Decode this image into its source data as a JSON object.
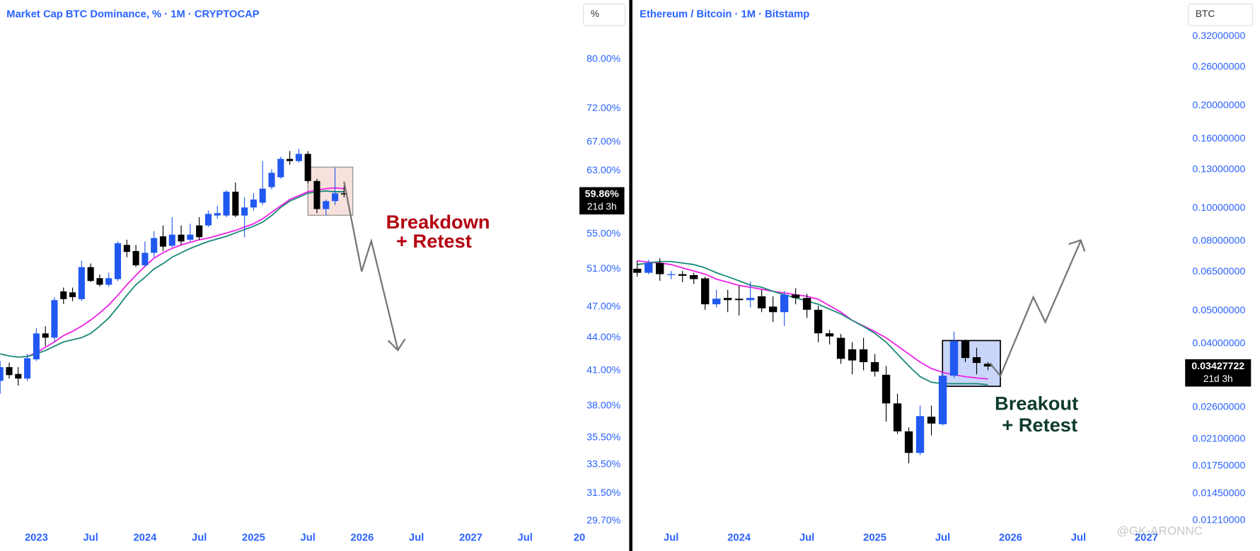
{
  "chart_data": [
    {
      "type": "candlestick",
      "title": "Market Cap BTC Dominance, % · 1M · CRYPTOCAP",
      "y_unit": "%",
      "log_scale": true,
      "grid": false,
      "up_color": "#2158f0",
      "down_color": "#000000",
      "x": [
        "2022-09",
        "2022-10",
        "2022-11",
        "2022-12",
        "2023-01",
        "2023-02",
        "2023-03",
        "2023-04",
        "2023-05",
        "2023-06",
        "2023-07",
        "2023-08",
        "2023-09",
        "2023-10",
        "2023-11",
        "2023-12",
        "2024-01",
        "2024-02",
        "2024-03",
        "2024-04",
        "2024-05",
        "2024-06",
        "2024-07",
        "2024-08",
        "2024-09",
        "2024-10",
        "2024-11",
        "2024-12",
        "2025-01",
        "2025-02",
        "2025-03",
        "2025-04",
        "2025-05",
        "2025-06",
        "2025-07",
        "2025-08",
        "2025-09",
        "2025-10",
        "2025-11"
      ],
      "open": [
        40.1,
        41.3,
        40.7,
        40.3,
        42.0,
        44.4,
        44.0,
        48.6,
        48.5,
        47.8,
        51.2,
        50.0,
        49.3,
        49.9,
        53.7,
        53.0,
        51.4,
        52.8,
        54.7,
        53.6,
        54.9,
        54.3,
        56.0,
        56.0,
        57.2,
        57.2,
        60.2,
        57.2,
        58.2,
        58.8,
        60.8,
        62.1,
        64.6,
        64.3,
        65.3,
        61.6,
        58.0,
        59.0,
        60.0
      ],
      "high": [
        41.85,
        41.7,
        41.3,
        42.5,
        44.9,
        45.1,
        48.0,
        49.0,
        49.0,
        51.9,
        51.6,
        50.4,
        50.6,
        54.1,
        54.3,
        53.7,
        54.1,
        55.3,
        56.0,
        57.0,
        56.0,
        56.2,
        57.0,
        57.8,
        58.4,
        60.4,
        61.4,
        59.5,
        60.0,
        64.3,
        63.2,
        64.9,
        65.7,
        66.0,
        65.7,
        61.9,
        59.2,
        63.4,
        61.0
      ],
      "low": [
        39.0,
        40.3,
        39.7,
        40.1,
        41.85,
        43.2,
        43.6,
        47.3,
        47.6,
        47.6,
        49.6,
        49.1,
        49.1,
        49.7,
        52.3,
        51.2,
        51.2,
        52.3,
        53.0,
        53.4,
        53.7,
        54.1,
        54.3,
        55.8,
        56.8,
        57.0,
        57.0,
        54.6,
        57.8,
        58.5,
        60.5,
        61.9,
        63.8,
        64.1,
        61.3,
        57.5,
        57.2,
        58.5,
        59.5
      ],
      "close": [
        41.3,
        40.6,
        40.3,
        42.1,
        44.4,
        44.0,
        47.7,
        47.8,
        48.0,
        51.2,
        49.7,
        49.3,
        50.0,
        53.9,
        52.9,
        51.4,
        52.8,
        54.5,
        53.5,
        54.9,
        54.1,
        54.9,
        54.6,
        57.4,
        57.5,
        60.2,
        57.2,
        58.2,
        59.2,
        60.6,
        62.7,
        64.6,
        64.3,
        65.3,
        61.6,
        58.0,
        59.0,
        60.0,
        59.86
      ],
      "moving_averages": [
        {
          "color": "#ee22e6",
          "values": [
            null,
            null,
            null,
            42.25,
            42.6,
            43.1,
            43.6,
            44.2,
            44.6,
            45.1,
            45.7,
            46.4,
            47.2,
            48.2,
            49.3,
            50.3,
            51.3,
            52.2,
            52.8,
            53.3,
            53.7,
            54.0,
            54.3,
            54.5,
            54.8,
            55.1,
            55.4,
            55.8,
            56.2,
            56.8,
            57.6,
            58.4,
            59.2,
            59.7,
            60.2,
            60.4,
            60.6,
            60.7,
            60.6
          ]
        },
        {
          "color": "#1a8a78",
          "values": [
            42.5,
            42.3,
            42.2,
            42.25,
            42.5,
            42.8,
            43.2,
            43.6,
            43.8,
            44.0,
            44.4,
            45.1,
            45.9,
            47.0,
            48.2,
            49.3,
            50.1,
            51.0,
            51.6,
            52.3,
            52.8,
            53.3,
            53.7,
            54.1,
            54.4,
            54.7,
            55.1,
            55.5,
            55.9,
            56.4,
            57.2,
            58.2,
            59.0,
            59.5,
            60.0,
            60.2,
            60.3,
            60.2,
            60.2
          ]
        }
      ],
      "xlim": [
        "2022-09",
        "2028-01"
      ],
      "xticks": [
        {
          "value": "2023-01",
          "label": "2023"
        },
        {
          "value": "2023-07",
          "label": "Jul"
        },
        {
          "value": "2024-01",
          "label": "2024"
        },
        {
          "value": "2024-07",
          "label": "Jul"
        },
        {
          "value": "2025-01",
          "label": "2025"
        },
        {
          "value": "2025-07",
          "label": "Jul"
        },
        {
          "value": "2026-01",
          "label": "2026"
        },
        {
          "value": "2026-07",
          "label": "Jul"
        },
        {
          "value": "2027-01",
          "label": "2027"
        },
        {
          "value": "2027-07",
          "label": "Jul"
        },
        {
          "value": "2028-01",
          "label": "20"
        }
      ],
      "ylim": [
        29.1,
        86.3
      ],
      "yticks": [
        {
          "value": 80,
          "label": "80.00%"
        },
        {
          "value": 72,
          "label": "72.00%"
        },
        {
          "value": 67,
          "label": "67.00%"
        },
        {
          "value": 63,
          "label": "63.00%"
        },
        {
          "value": 55,
          "label": "55.00%"
        },
        {
          "value": 51,
          "label": "51.00%"
        },
        {
          "value": 47,
          "label": "47.00%"
        },
        {
          "value": 44,
          "label": "44.00%"
        },
        {
          "value": 41,
          "label": "41.00%"
        },
        {
          "value": 38,
          "label": "38.00%"
        },
        {
          "value": 35.5,
          "label": "35.50%"
        },
        {
          "value": 33.5,
          "label": "33.50%"
        },
        {
          "value": 31.5,
          "label": "31.50%"
        },
        {
          "value": 29.7,
          "label": "29.70%"
        }
      ],
      "last_price": {
        "value": 59.86,
        "label": "59.86%"
      },
      "countdown": "21d 3h",
      "annotation_color": "#b3000f",
      "annotations": [
        "Breakdown",
        "+ Retest"
      ]
    },
    {
      "type": "candlestick",
      "title": "Ethereum / Bitcoin · 1M · Bitstamp",
      "y_unit": "BTC",
      "log_scale": true,
      "grid": false,
      "up_color": "#2158f0",
      "down_color": "#000000",
      "x": [
        "2023-04",
        "2023-05",
        "2023-06",
        "2023-07",
        "2023-08",
        "2023-09",
        "2023-10",
        "2023-11",
        "2023-12",
        "2024-01",
        "2024-02",
        "2024-03",
        "2024-04",
        "2024-05",
        "2024-06",
        "2024-07",
        "2024-08",
        "2024-09",
        "2024-10",
        "2024-11",
        "2024-12",
        "2025-01",
        "2025-02",
        "2025-03",
        "2025-04",
        "2025-05",
        "2025-06",
        "2025-07",
        "2025-08",
        "2025-09",
        "2025-10",
        "2025-11"
      ],
      "open": [
        0.0664,
        0.0646,
        0.069,
        0.0636,
        0.064,
        0.0636,
        0.0622,
        0.0522,
        0.0545,
        0.0542,
        0.0537,
        0.0551,
        0.0514,
        0.0495,
        0.0557,
        0.0545,
        0.0503,
        0.0429,
        0.0416,
        0.0385,
        0.0385,
        0.0353,
        0.0324,
        0.0267,
        0.0221,
        0.0191,
        0.0244,
        0.0232,
        0.0322,
        0.0407,
        0.0365,
        0.0349
      ],
      "high": [
        0.0701,
        0.0705,
        0.0713,
        0.0654,
        0.0654,
        0.0646,
        0.0629,
        0.0576,
        0.0576,
        0.0592,
        0.0608,
        0.0576,
        0.0551,
        0.057,
        0.0582,
        0.056,
        0.0517,
        0.0439,
        0.0427,
        0.0404,
        0.0416,
        0.0373,
        0.0344,
        0.0285,
        0.0227,
        0.0263,
        0.0263,
        0.0329,
        0.0434,
        0.0411,
        0.0389,
        0.0353
      ],
      "low": [
        0.0629,
        0.064,
        0.0612,
        0.0619,
        0.0606,
        0.0599,
        0.0503,
        0.0511,
        0.0495,
        0.0484,
        0.0511,
        0.0495,
        0.0463,
        0.0451,
        0.0522,
        0.0476,
        0.0404,
        0.0398,
        0.0349,
        0.0325,
        0.0334,
        0.032,
        0.0236,
        0.0217,
        0.0178,
        0.0188,
        0.0215,
        0.023,
        0.0317,
        0.0353,
        0.0325,
        0.0334
      ],
      "close": [
        0.0646,
        0.069,
        0.064,
        0.064,
        0.0633,
        0.0619,
        0.0522,
        0.0542,
        0.0537,
        0.0537,
        0.0545,
        0.0508,
        0.0495,
        0.0557,
        0.0545,
        0.0503,
        0.0429,
        0.042,
        0.0361,
        0.0357,
        0.0353,
        0.0331,
        0.0267,
        0.0221,
        0.0191,
        0.0245,
        0.0233,
        0.0322,
        0.0407,
        0.0363,
        0.0351,
        0.03427722
      ],
      "moving_averages": [
        {
          "color": "#ee22e6",
          "values": [
            0.0701,
            0.0694,
            0.069,
            0.0683,
            0.0668,
            0.0654,
            0.064,
            0.0619,
            0.0606,
            0.0593,
            0.0586,
            0.0578,
            0.057,
            0.0564,
            0.0557,
            0.0551,
            0.054,
            0.0517,
            0.0495,
            0.0468,
            0.0451,
            0.0434,
            0.0416,
            0.0394,
            0.0373,
            0.0353,
            0.0338,
            0.0329,
            0.0324,
            0.032,
            0.0317,
            0.0315
          ]
        },
        {
          "color": "#1a8a78",
          "values": [
            0.0683,
            0.069,
            0.0697,
            0.0697,
            0.069,
            0.0683,
            0.0668,
            0.0646,
            0.0629,
            0.0612,
            0.0594,
            0.0586,
            0.057,
            0.0557,
            0.0545,
            0.0534,
            0.0522,
            0.0505,
            0.0489,
            0.0468,
            0.0449,
            0.0429,
            0.0404,
            0.0373,
            0.0344,
            0.032,
            0.0308,
            0.0305,
            0.0305,
            0.0305,
            0.0305,
            0.0303
          ]
        }
      ],
      "xlim": [
        "2023-04",
        "2027-04"
      ],
      "xticks": [
        {
          "value": "2023-07",
          "label": "Jul"
        },
        {
          "value": "2024-01",
          "label": "2024"
        },
        {
          "value": "2024-07",
          "label": "Jul"
        },
        {
          "value": "2025-01",
          "label": "2025"
        },
        {
          "value": "2025-07",
          "label": "Jul"
        },
        {
          "value": "2026-01",
          "label": "2026"
        },
        {
          "value": "2026-07",
          "label": "Jul"
        },
        {
          "value": "2027-01",
          "label": "2027"
        }
      ],
      "ylim": [
        0.01133,
        0.3474
      ],
      "yticks": [
        {
          "value": 0.32,
          "label": "0.32000000"
        },
        {
          "value": 0.26,
          "label": "0.26000000"
        },
        {
          "value": 0.2,
          "label": "0.20000000"
        },
        {
          "value": 0.16,
          "label": "0.16000000"
        },
        {
          "value": 0.13,
          "label": "0.13000000"
        },
        {
          "value": 0.1,
          "label": "0.10000000"
        },
        {
          "value": 0.08,
          "label": "0.08000000"
        },
        {
          "value": 0.065,
          "label": "0.06500000"
        },
        {
          "value": 0.05,
          "label": "0.05000000"
        },
        {
          "value": 0.04,
          "label": "0.04000000"
        },
        {
          "value": 0.026,
          "label": "0.02600000"
        },
        {
          "value": 0.021,
          "label": "0.02100000"
        },
        {
          "value": 0.0175,
          "label": "0.01750000"
        },
        {
          "value": 0.0145,
          "label": "0.01450000"
        },
        {
          "value": 0.0121,
          "label": "0.01210000"
        }
      ],
      "last_price": {
        "value": 0.03427722,
        "label": "0.03427722"
      },
      "countdown": "21d 3h",
      "annotation_color": "#0d3a2b",
      "annotations": [
        "Breakout",
        "+ Retest"
      ]
    }
  ],
  "watermark": "@GK-ARONNC"
}
